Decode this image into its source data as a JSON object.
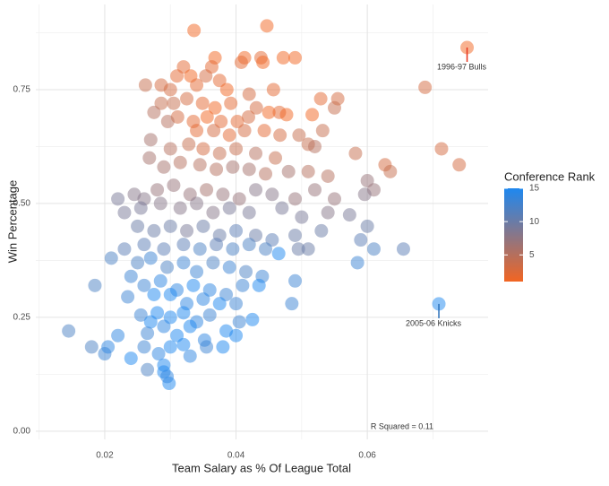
{
  "chart_data": {
    "type": "scatter",
    "x_label": "Team Salary as % Of League Total",
    "y_label": "Win Percentage",
    "xlim": [
      0.0095,
      0.0784
    ],
    "ylim": [
      -0.018,
      0.937
    ],
    "xticks": [
      0.02,
      0.04,
      0.06
    ],
    "yticks": [
      {
        "value": 0,
        "label": "0.00"
      },
      {
        "value": 0.25,
        "label": "0.25"
      },
      {
        "value": 0.5,
        "label": "0.50"
      },
      {
        "value": 0.75,
        "label": "0.75"
      }
    ],
    "xminorticks": [
      0.01,
      0.03,
      0.05,
      0.07
    ],
    "yminorticks": [
      0.125,
      0.375,
      0.625,
      0.875
    ],
    "grid": true,
    "opacity": 0.5,
    "color_scale": {
      "title": "Conference Rank",
      "low_color": "#f26522",
      "high_color": "#1e88f0",
      "lim": [
        1,
        15
      ],
      "ticks": [
        5,
        10,
        15
      ]
    },
    "series": [
      {
        "name": "Teams",
        "x": [
          0.0336,
          0.0447,
          0.0368,
          0.0413,
          0.0438,
          0.0472,
          0.049,
          0.032,
          0.0363,
          0.0408,
          0.0441,
          0.031,
          0.0331,
          0.0354,
          0.0375,
          0.0262,
          0.0286,
          0.03,
          0.034,
          0.0386,
          0.042,
          0.0457,
          0.0529,
          0.0555,
          0.0688,
          0.0305,
          0.0325,
          0.0349,
          0.0368,
          0.0392,
          0.0431,
          0.0466,
          0.045,
          0.0477,
          0.0516,
          0.0286,
          0.0311,
          0.0335,
          0.0356,
          0.0377,
          0.0402,
          0.0419,
          0.055,
          0.0275,
          0.0296,
          0.034,
          0.0366,
          0.039,
          0.0413,
          0.0443,
          0.0467,
          0.0496,
          0.0532,
          0.027,
          0.03,
          0.0328,
          0.035,
          0.0375,
          0.04,
          0.043,
          0.046,
          0.051,
          0.052,
          0.0582,
          0.0627,
          0.0635,
          0.0713,
          0.074,
          0.0268,
          0.029,
          0.0315,
          0.0345,
          0.037,
          0.0395,
          0.042,
          0.0445,
          0.048,
          0.051,
          0.054,
          0.06,
          0.061,
          0.022,
          0.0245,
          0.026,
          0.028,
          0.0305,
          0.033,
          0.0355,
          0.038,
          0.0405,
          0.043,
          0.0455,
          0.049,
          0.052,
          0.055,
          0.0596,
          0.023,
          0.0255,
          0.0285,
          0.0315,
          0.034,
          0.0365,
          0.039,
          0.042,
          0.047,
          0.05,
          0.054,
          0.0573,
          0.06,
          0.025,
          0.0275,
          0.03,
          0.0325,
          0.035,
          0.0375,
          0.04,
          0.043,
          0.0455,
          0.049,
          0.053,
          0.023,
          0.026,
          0.029,
          0.032,
          0.0345,
          0.037,
          0.0395,
          0.042,
          0.0445,
          0.0495,
          0.051,
          0.061,
          0.0655,
          0.059,
          0.021,
          0.025,
          0.027,
          0.0295,
          0.032,
          0.034,
          0.0365,
          0.039,
          0.0415,
          0.044,
          0.0465,
          0.049,
          0.0585,
          0.024,
          0.026,
          0.0285,
          0.031,
          0.0335,
          0.036,
          0.0385,
          0.041,
          0.0435,
          0.0185,
          0.0235,
          0.0275,
          0.03,
          0.0325,
          0.035,
          0.0375,
          0.04,
          0.0485,
          0.0709,
          0.0145,
          0.022,
          0.0255,
          0.028,
          0.03,
          0.032,
          0.034,
          0.036,
          0.0385,
          0.0405,
          0.0425,
          0.027,
          0.029,
          0.031,
          0.033,
          0.0352,
          0.0265,
          0.04,
          0.018,
          0.02,
          0.0205,
          0.024,
          0.026,
          0.0282,
          0.03,
          0.032,
          0.033,
          0.0355,
          0.038,
          0.029,
          0.029,
          0.0298,
          0.0295,
          0.0265,
          0.0752
        ],
        "values": [
          0.88,
          0.89,
          0.82,
          0.82,
          0.82,
          0.82,
          0.82,
          0.8,
          0.8,
          0.81,
          0.81,
          0.78,
          0.78,
          0.78,
          0.77,
          0.76,
          0.76,
          0.75,
          0.76,
          0.75,
          0.74,
          0.75,
          0.73,
          0.73,
          0.755,
          0.72,
          0.73,
          0.72,
          0.71,
          0.72,
          0.71,
          0.7,
          0.7,
          0.695,
          0.695,
          0.72,
          0.69,
          0.68,
          0.69,
          0.68,
          0.68,
          0.69,
          0.71,
          0.7,
          0.68,
          0.66,
          0.66,
          0.65,
          0.66,
          0.66,
          0.65,
          0.65,
          0.66,
          0.64,
          0.62,
          0.63,
          0.62,
          0.61,
          0.62,
          0.61,
          0.6,
          0.63,
          0.625,
          0.61,
          0.585,
          0.57,
          0.62,
          0.585,
          0.6,
          0.58,
          0.59,
          0.585,
          0.575,
          0.58,
          0.575,
          0.565,
          0.57,
          0.57,
          0.56,
          0.55,
          0.53,
          0.51,
          0.52,
          0.51,
          0.53,
          0.54,
          0.52,
          0.53,
          0.52,
          0.51,
          0.53,
          0.52,
          0.51,
          0.53,
          0.51,
          0.52,
          0.48,
          0.49,
          0.5,
          0.49,
          0.5,
          0.48,
          0.49,
          0.48,
          0.49,
          0.47,
          0.48,
          0.475,
          0.45,
          0.45,
          0.44,
          0.45,
          0.44,
          0.45,
          0.43,
          0.44,
          0.43,
          0.42,
          0.43,
          0.44,
          0.4,
          0.41,
          0.4,
          0.41,
          0.4,
          0.41,
          0.4,
          0.41,
          0.4,
          0.4,
          0.4,
          0.4,
          0.4,
          0.42,
          0.38,
          0.37,
          0.38,
          0.36,
          0.37,
          0.35,
          0.37,
          0.36,
          0.35,
          0.34,
          0.39,
          0.33,
          0.37,
          0.34,
          0.32,
          0.33,
          0.31,
          0.32,
          0.31,
          0.3,
          0.32,
          0.32,
          0.32,
          0.295,
          0.3,
          0.3,
          0.28,
          0.29,
          0.28,
          0.28,
          0.28,
          0.2795,
          0.22,
          0.21,
          0.255,
          0.26,
          0.25,
          0.26,
          0.24,
          0.255,
          0.22,
          0.24,
          0.245,
          0.24,
          0.23,
          0.21,
          0.23,
          0.2,
          0.215,
          0.21,
          0.185,
          0.17,
          0.185,
          0.16,
          0.185,
          0.17,
          0.185,
          0.19,
          0.165,
          0.185,
          0.185,
          0.145,
          0.13,
          0.105,
          0.12,
          0.135,
          0.8425
        ],
        "ranks": [
          1,
          1,
          1,
          1,
          2,
          1,
          1,
          2,
          2,
          2,
          1,
          2,
          1,
          3,
          2,
          4,
          3,
          3,
          2,
          1,
          3,
          2,
          2,
          3,
          3,
          4,
          3,
          2,
          1,
          2,
          3,
          2,
          1,
          1,
          1,
          4,
          3,
          2,
          1,
          2,
          2,
          3,
          4,
          5,
          5,
          2,
          3,
          2,
          3,
          2,
          3,
          4,
          4,
          6,
          5,
          4,
          3,
          4,
          4,
          5,
          4,
          4,
          5,
          4,
          3,
          4,
          3,
          3,
          6,
          6,
          5,
          5,
          5,
          6,
          6,
          5,
          6,
          5,
          5,
          7,
          7,
          9,
          8,
          8,
          7,
          7,
          7,
          6,
          7,
          7,
          8,
          8,
          7,
          7,
          7,
          8,
          9,
          9,
          8,
          8,
          8,
          8,
          9,
          9,
          9,
          9,
          8,
          9,
          10,
          10,
          10,
          10,
          9,
          10,
          10,
          11,
          10,
          11,
          10,
          10,
          11,
          11,
          11,
          11,
          12,
          11,
          12,
          12,
          12,
          10,
          10,
          12,
          11,
          11,
          12,
          12,
          13,
          12,
          13,
          13,
          12,
          13,
          12,
          13,
          15,
          13,
          13,
          13,
          13,
          14,
          14,
          15,
          14,
          13,
          13,
          15,
          12,
          13,
          15,
          15,
          14,
          14,
          15,
          13,
          13,
          15,
          12,
          14,
          13,
          15,
          15,
          15,
          14,
          13,
          15,
          13,
          15,
          15,
          14,
          15,
          15,
          14,
          13,
          15,
          12,
          13,
          14,
          15,
          13,
          14,
          15,
          15,
          14,
          13,
          15,
          15,
          15,
          15,
          14,
          12,
          1
        ]
      }
    ],
    "annotations": [
      {
        "text": "1996-97 Bulls",
        "x": 0.0752,
        "y": 0.8425,
        "color": "#e8341c"
      },
      {
        "text": "2005-06 Knicks",
        "x": 0.0709,
        "y": 0.2795,
        "color": "#2a6fb8"
      },
      {
        "text": "R Squared = 0.11"
      }
    ]
  }
}
